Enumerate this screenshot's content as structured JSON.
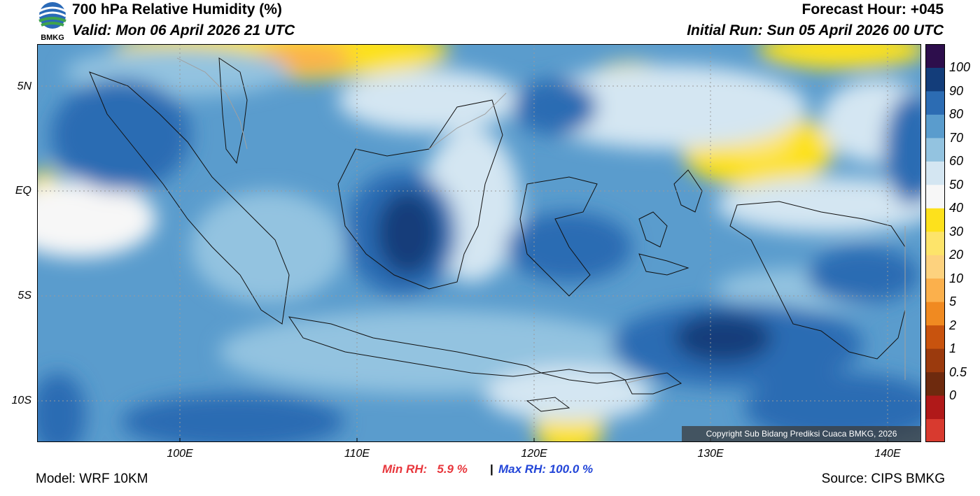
{
  "header": {
    "title": "700 hPa Relative Humidity (%)",
    "valid": "Valid: Mon 06 April 2026 21 UTC",
    "forecast_hour": "Forecast Hour: +045",
    "initial_run": "Initial Run: Sun 05 April 2026 00 UTC",
    "logo_text": "BMKG"
  },
  "map": {
    "lat_labels": [
      "5N",
      "EQ",
      "5S",
      "10S"
    ],
    "lon_labels": [
      "100E",
      "110E",
      "120E",
      "130E",
      "140E"
    ],
    "lon_range": [
      92,
      142
    ],
    "lat_range": [
      -12,
      7
    ]
  },
  "colorbar": {
    "labels": [
      "100",
      "90",
      "80",
      "70",
      "60",
      "50",
      "40",
      "30",
      "20",
      "10",
      "5",
      "2",
      "1",
      "0.5",
      "0"
    ],
    "colors": [
      "#d83a2f",
      "#b01919",
      "#6e2a0e",
      "#9b3a0d",
      "#c8530e",
      "#f08a21",
      "#fbb04c",
      "#fdd27e",
      "#fde46a",
      "#fde11c",
      "#f7f7f7",
      "#d4e6f2",
      "#93c3e0",
      "#5a9ccd",
      "#2c6cb3",
      "#133d7a",
      "#2d0e4c"
    ]
  },
  "stats": {
    "min_label": "Min RH:   5.9 %",
    "separator": "|",
    "max_label": "Max RH: 100.0 %"
  },
  "footer": {
    "model": "Model: WRF 10KM",
    "source": "Source: CIPS BMKG",
    "copyright": "Copyright Sub Bidang Prediksi Cuaca BMKG, 2026"
  }
}
